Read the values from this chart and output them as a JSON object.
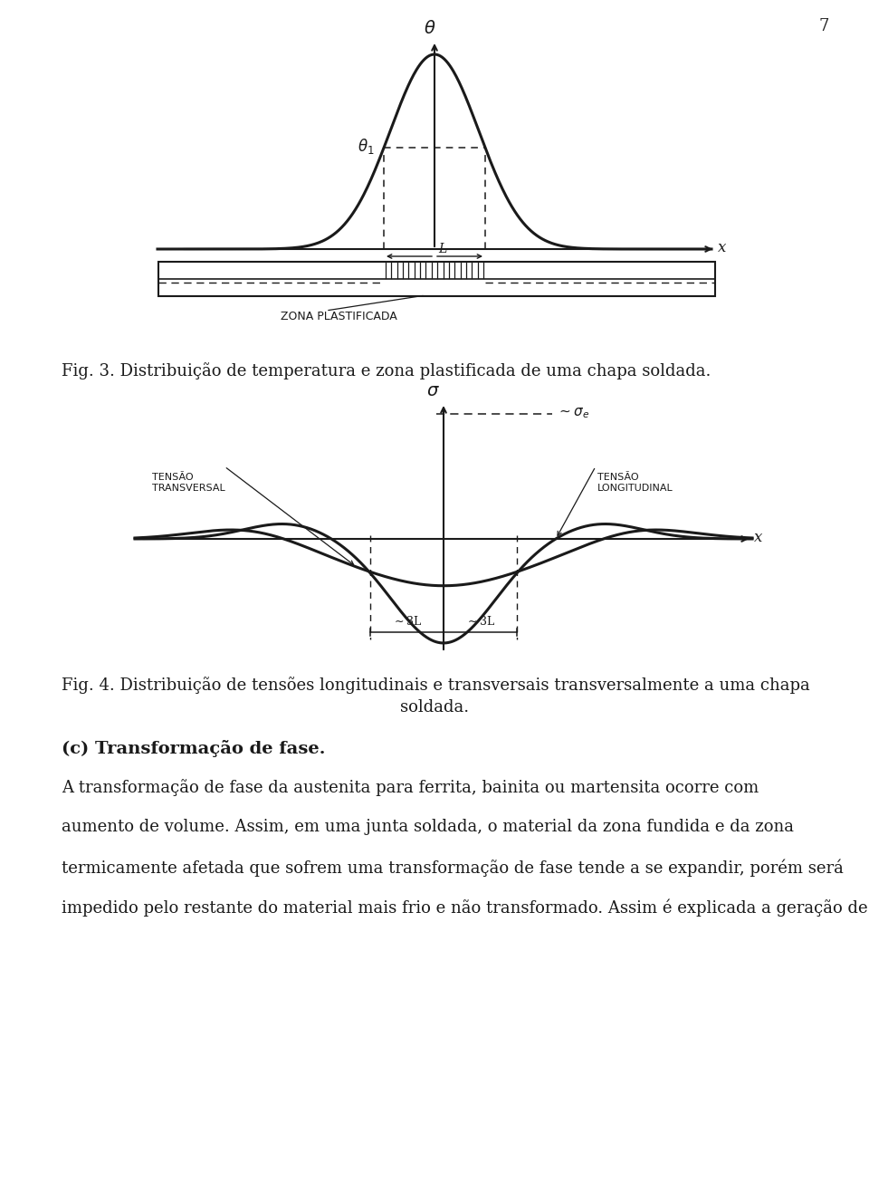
{
  "page_num": "7",
  "fig3_caption": "Fig. 3. Distribuição de temperatura e zona plastificada de uma chapa soldada.",
  "fig4_caption_line1": "Fig. 4. Distribuição de tensões longitudinais e transversais transversalmente a uma chapa",
  "fig4_caption_line2": "soldada.",
  "section_heading": "(c) Transformação de fase.",
  "para_lines": [
    "A transformação de fase da austenita para ferrita, bainita ou martensita ocorre com",
    "aumento de volume. Assim, em uma junta soldada, o material da zona fundida e da zona",
    "termicamente afetada que sofrem uma transformação de fase tende a se expandir, porém será",
    "impedido pelo restante do material mais frio e não transformado. Assim é explicada a geração de"
  ],
  "bg_color": "#ffffff",
  "line_color": "#1a1a1a"
}
